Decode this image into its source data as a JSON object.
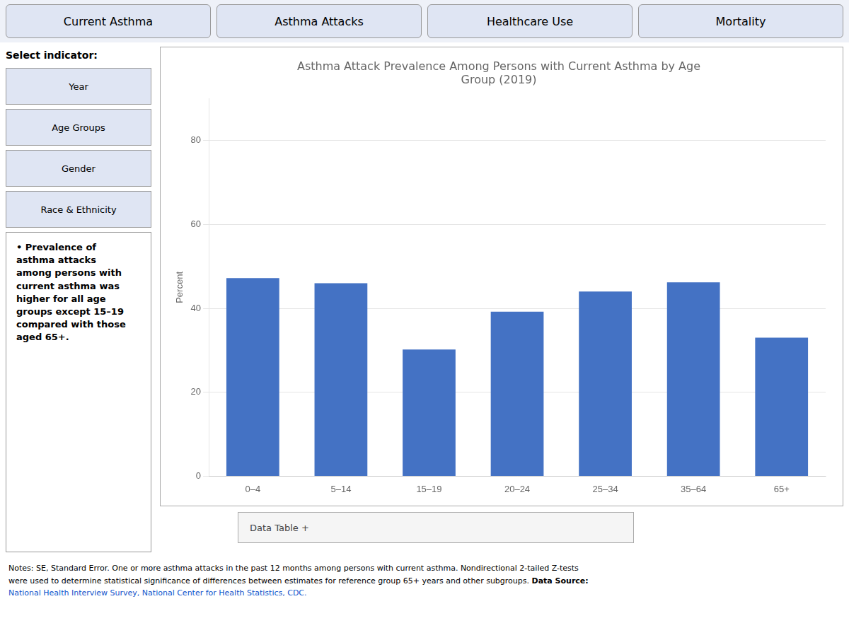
{
  "chart_data": {
    "type": "bar",
    "title": "Asthma Attack Prevalence Among Persons with Current Asthma by Age\nGroup (2019)",
    "categories": [
      "0–4",
      "5–14",
      "15–19",
      "20–24",
      "25–34",
      "35–64",
      "65+"
    ],
    "values": [
      47.2,
      46.0,
      30.2,
      39.2,
      44.0,
      46.2,
      33.0
    ],
    "color": "#4472C4",
    "ylabel": "Percent",
    "ylim": [
      0,
      90
    ],
    "yticks": [
      0,
      20,
      40,
      60,
      80
    ],
    "grid": true,
    "annotations": [
      "Current Asthma",
      "Asthma Attacks",
      "Healthcare Use",
      "Mortality",
      "Select indicator:",
      "Year",
      "Age Groups",
      "Gender",
      "Race & Ethnicity",
      "•   Prevalence of\nasthma attacks\namong persons with\ncurrent asthma was\nhigher for all age\ngroups except 15–19\ncompared with those\naged 65+.",
      "Data Table +",
      "Notes: SE, Standard Error. One or more asthma attacks in the past 12 months among persons with current asthma. Nondirectional 2-tailed Z-tests",
      "were used to determine statistical significance of differences between estimates for reference group 65+ years and other subgroups. ",
      "Data Source:",
      "National Health Interview Survey, National Center for Health Statistics, CDC."
    ]
  }
}
